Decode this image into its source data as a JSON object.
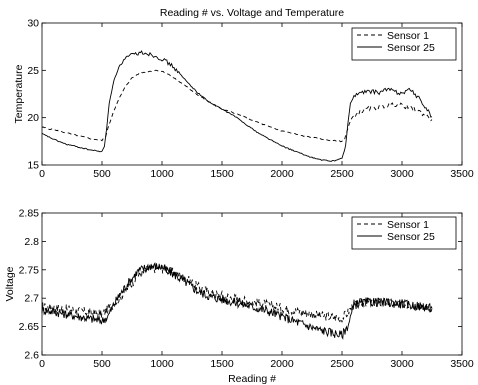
{
  "chart_data": [
    {
      "type": "line",
      "title": "Reading # vs. Voltage and Temperature",
      "xlabel": "",
      "ylabel": "Temperature",
      "xlim": [
        0,
        3500
      ],
      "ylim": [
        15,
        30
      ],
      "xticks": [
        "0",
        "500",
        "1000",
        "1500",
        "2000",
        "2500",
        "3000",
        "3500"
      ],
      "yticks": [
        "15",
        "20",
        "25",
        "30"
      ],
      "grid": false,
      "legend_position": "top-right",
      "series": [
        {
          "name": "Sensor 1",
          "style": "dashed",
          "color": "#000000",
          "x": [
            0,
            100,
            200,
            300,
            400,
            500,
            530,
            560,
            600,
            650,
            700,
            750,
            800,
            850,
            900,
            950,
            1000,
            1050,
            1100,
            1200,
            1300,
            1400,
            1500,
            1600,
            1700,
            1800,
            1900,
            2000,
            2100,
            2200,
            2300,
            2400,
            2500,
            2520,
            2540,
            2560,
            2580,
            2600,
            2650,
            2700,
            2750,
            2800,
            2850,
            2900,
            2950,
            3000,
            3050,
            3100,
            3150,
            3200,
            3250
          ],
          "y": [
            19.0,
            18.7,
            18.4,
            18.1,
            17.8,
            17.6,
            18.0,
            19.3,
            20.8,
            22.2,
            23.4,
            24.2,
            24.6,
            24.8,
            24.9,
            25.0,
            24.9,
            24.6,
            24.2,
            23.3,
            22.4,
            21.6,
            20.9,
            20.5,
            20.0,
            19.5,
            19.0,
            18.6,
            18.3,
            18.0,
            17.8,
            17.6,
            17.5,
            17.7,
            18.5,
            19.3,
            19.9,
            20.2,
            20.6,
            20.9,
            21.0,
            21.1,
            21.2,
            21.3,
            21.4,
            21.3,
            21.1,
            20.9,
            20.6,
            20.2,
            19.8
          ]
        },
        {
          "name": "Sensor 25",
          "style": "solid",
          "color": "#000000",
          "x": [
            0,
            100,
            200,
            300,
            400,
            500,
            520,
            540,
            560,
            600,
            650,
            700,
            750,
            800,
            850,
            900,
            950,
            1000,
            1050,
            1100,
            1150,
            1200,
            1300,
            1400,
            1500,
            1600,
            1700,
            1800,
            1900,
            2000,
            2100,
            2200,
            2300,
            2400,
            2450,
            2500,
            2530,
            2550,
            2570,
            2600,
            2650,
            2700,
            2750,
            2800,
            2850,
            2900,
            2950,
            3000,
            3050,
            3100,
            3150,
            3200,
            3250
          ],
          "y": [
            18.3,
            17.7,
            17.2,
            16.9,
            16.6,
            16.4,
            17.0,
            19.0,
            21.5,
            24.0,
            25.6,
            26.3,
            26.6,
            26.8,
            26.9,
            26.7,
            26.5,
            26.2,
            25.8,
            25.3,
            24.6,
            23.9,
            22.6,
            21.6,
            20.9,
            20.2,
            19.3,
            18.4,
            17.7,
            17.0,
            16.5,
            16.0,
            15.6,
            15.4,
            15.5,
            15.7,
            17.0,
            19.5,
            21.5,
            22.3,
            22.6,
            22.7,
            22.8,
            22.6,
            22.9,
            23.0,
            22.7,
            22.6,
            23.0,
            22.6,
            21.9,
            21.0,
            20.1
          ]
        }
      ]
    },
    {
      "type": "line",
      "title": "",
      "xlabel": "Reading #",
      "ylabel": "Voltage",
      "xlim": [
        0,
        3500
      ],
      "ylim": [
        2.6,
        2.85
      ],
      "xticks": [
        "0",
        "500",
        "1000",
        "1500",
        "2000",
        "2500",
        "3000",
        "3500"
      ],
      "yticks": [
        "2.6",
        "2.65",
        "2.7",
        "2.75",
        "2.8",
        "2.85"
      ],
      "grid": false,
      "legend_position": "top-right",
      "series": [
        {
          "name": "Sensor 1",
          "style": "dashed",
          "color": "#000000",
          "x": [
            0,
            250,
            500,
            600,
            700,
            800,
            900,
            1000,
            1100,
            1200,
            1300,
            1400,
            1500,
            1700,
            1900,
            2100,
            2300,
            2500,
            2550,
            2600,
            2700,
            2800,
            3000,
            3200,
            3250
          ],
          "y": [
            2.685,
            2.68,
            2.672,
            2.69,
            2.715,
            2.74,
            2.752,
            2.752,
            2.745,
            2.735,
            2.72,
            2.71,
            2.705,
            2.695,
            2.688,
            2.678,
            2.67,
            2.665,
            2.675,
            2.69,
            2.693,
            2.693,
            2.69,
            2.685,
            2.683
          ]
        },
        {
          "name": "Sensor 25",
          "style": "solid",
          "color": "#000000",
          "x": [
            0,
            250,
            500,
            550,
            600,
            700,
            800,
            900,
            1000,
            1100,
            1200,
            1300,
            1400,
            1500,
            1700,
            1900,
            2100,
            2300,
            2500,
            2550,
            2600,
            2700,
            2800,
            3000,
            3200,
            3250
          ],
          "y": [
            2.68,
            2.67,
            2.66,
            2.668,
            2.69,
            2.722,
            2.748,
            2.757,
            2.755,
            2.742,
            2.728,
            2.712,
            2.703,
            2.698,
            2.688,
            2.676,
            2.66,
            2.645,
            2.635,
            2.652,
            2.688,
            2.693,
            2.693,
            2.69,
            2.684,
            2.682
          ]
        }
      ]
    }
  ]
}
